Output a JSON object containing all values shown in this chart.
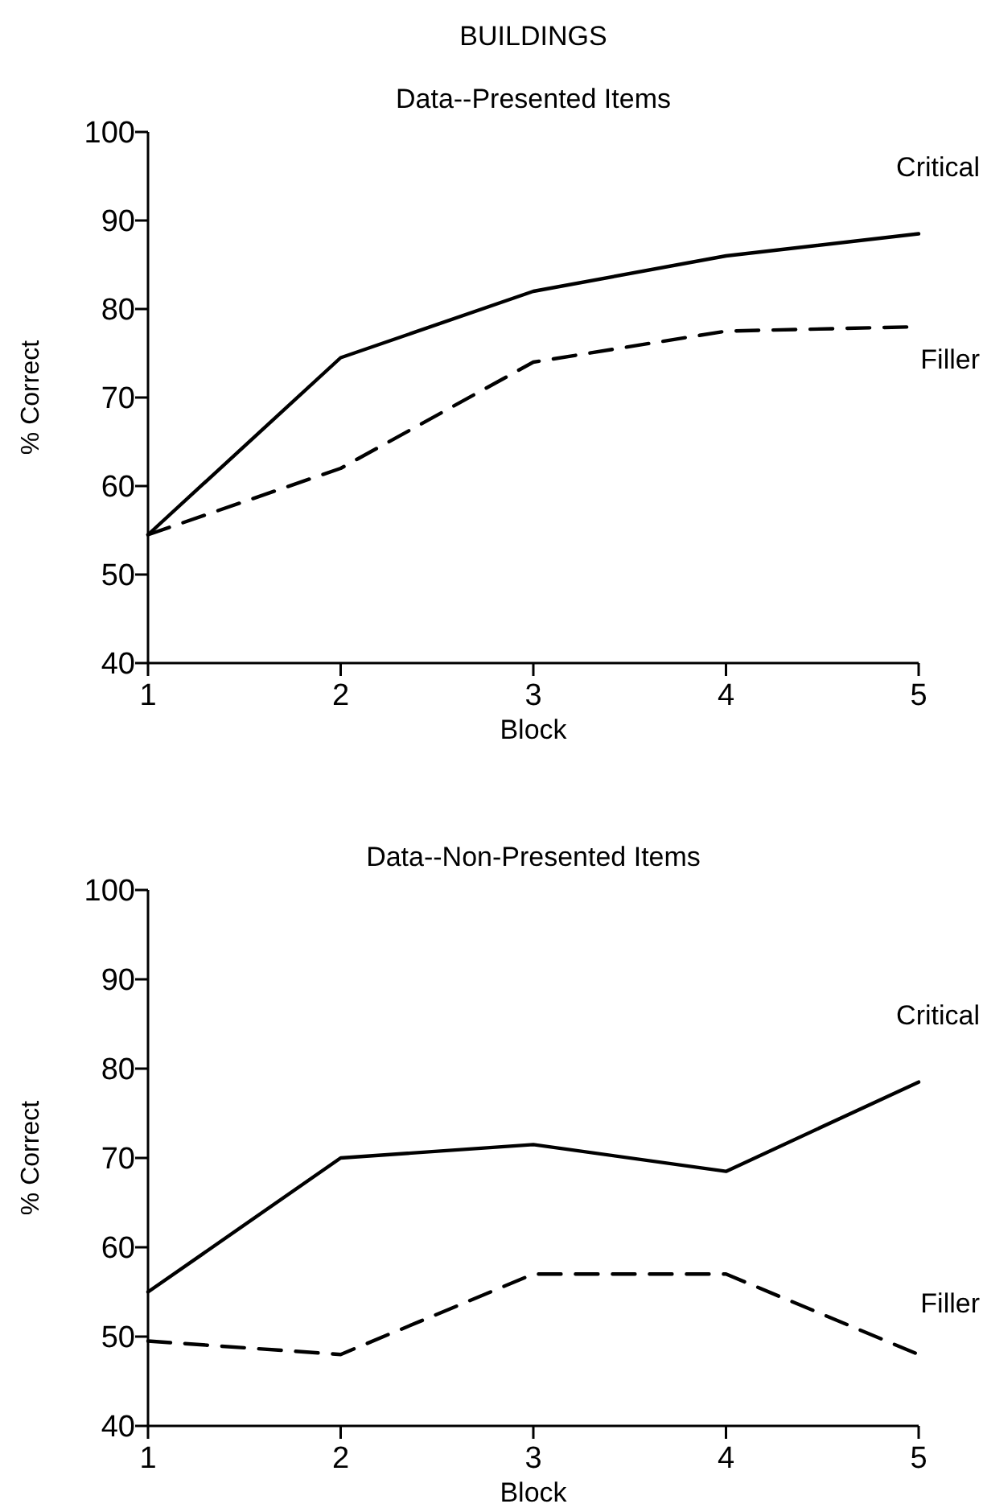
{
  "chart_data": [
    {
      "type": "line",
      "title": "BUILDINGS",
      "subtitle": "Data--Presented Items",
      "xlabel": "Block",
      "ylabel": "% Correct",
      "x": [
        1,
        2,
        3,
        4,
        5
      ],
      "xlim": [
        1,
        5
      ],
      "xticks": [
        1,
        2,
        3,
        4,
        5
      ],
      "ylim": [
        40,
        100
      ],
      "yticks": [
        40,
        50,
        60,
        70,
        80,
        90,
        100
      ],
      "grid": false,
      "legend": false,
      "marker": "none",
      "series": [
        {
          "name": "Critical",
          "color": "#000000",
          "line_style": "solid",
          "values": [
            54.5,
            74.5,
            82,
            86,
            88.5
          ]
        },
        {
          "name": "Filler",
          "color": "#000000",
          "line_style": "dashed",
          "values": [
            54.5,
            62,
            74,
            77.5,
            78
          ]
        }
      ]
    },
    {
      "type": "line",
      "title": "Data--Non-Presented Items",
      "xlabel": "Block",
      "ylabel": "% Correct",
      "x": [
        1,
        2,
        3,
        4,
        5
      ],
      "xlim": [
        1,
        5
      ],
      "xticks": [
        1,
        2,
        3,
        4,
        5
      ],
      "ylim": [
        40,
        100
      ],
      "yticks": [
        40,
        50,
        60,
        70,
        80,
        90,
        100
      ],
      "grid": false,
      "legend": false,
      "marker": "none",
      "series": [
        {
          "name": "Critical",
          "color": "#000000",
          "line_style": "solid",
          "values": [
            55,
            70,
            71.5,
            68.5,
            78.5
          ]
        },
        {
          "name": "Filler",
          "color": "#000000",
          "line_style": "dashed",
          "values": [
            49.5,
            48,
            57,
            57,
            48
          ]
        }
      ]
    }
  ]
}
